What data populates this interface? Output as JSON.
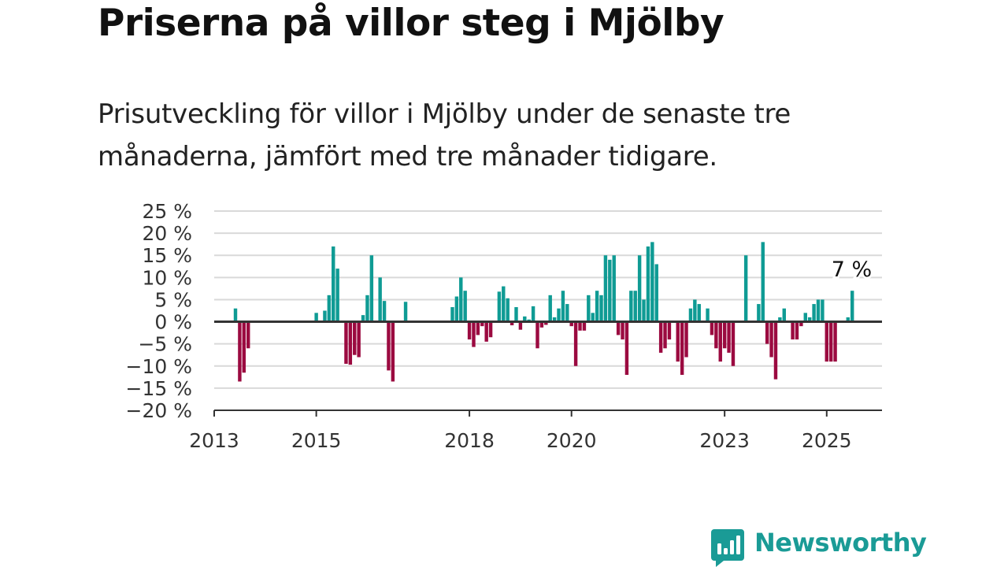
{
  "title": "Priserna på villor steg i Mjölby",
  "subtitle": "Prisutveckling för villor i Mjölby under de senaste tre månaderna, jämfört med tre månader tidigare.",
  "brand": {
    "name": "Newsworthy",
    "color": "#1a9b96",
    "icon": "newsworthy-bar-chart-icon"
  },
  "colors": {
    "positive": "#0f9b94",
    "negative": "#9b0a40",
    "grid": "#d9d9d9",
    "axis": "#333333"
  },
  "chart_data": {
    "type": "bar",
    "ylabel": "",
    "xlabel": "",
    "ylim": [
      -20,
      25
    ],
    "y_ticks": [
      {
        "value": 25,
        "label": "25 %"
      },
      {
        "value": 20,
        "label": "20 %"
      },
      {
        "value": 15,
        "label": "15 %"
      },
      {
        "value": 10,
        "label": "10 %"
      },
      {
        "value": 5,
        "label": "5 %"
      },
      {
        "value": 0,
        "label": "0 %"
      },
      {
        "value": -5,
        "label": "−5 %"
      },
      {
        "value": -10,
        "label": "−10 %"
      },
      {
        "value": -15,
        "label": "−15 %"
      },
      {
        "value": -20,
        "label": "−20 %"
      }
    ],
    "x_range": [
      "2013-01",
      "2026-02"
    ],
    "x_ticks": [
      {
        "date": "2013-01",
        "label": "2013"
      },
      {
        "date": "2015-01",
        "label": "2015"
      },
      {
        "date": "2018-01",
        "label": "2018"
      },
      {
        "date": "2020-01",
        "label": "2020"
      },
      {
        "date": "2023-01",
        "label": "2023"
      },
      {
        "date": "2025-01",
        "label": "2025"
      }
    ],
    "grid": true,
    "bars": [
      {
        "date": "2013-06",
        "value": 3
      },
      {
        "date": "2013-07",
        "value": -13.5
      },
      {
        "date": "2013-08",
        "value": -11.5
      },
      {
        "date": "2013-09",
        "value": -6
      },
      {
        "date": "2015-01",
        "value": 2
      },
      {
        "date": "2015-03",
        "value": 2.5
      },
      {
        "date": "2015-04",
        "value": 6
      },
      {
        "date": "2015-05",
        "value": 17
      },
      {
        "date": "2015-06",
        "value": 12
      },
      {
        "date": "2015-08",
        "value": -9.5
      },
      {
        "date": "2015-09",
        "value": -9.7
      },
      {
        "date": "2015-10",
        "value": -7.5
      },
      {
        "date": "2015-11",
        "value": -8
      },
      {
        "date": "2015-12",
        "value": 1.5
      },
      {
        "date": "2016-01",
        "value": 6
      },
      {
        "date": "2016-02",
        "value": 15
      },
      {
        "date": "2016-04",
        "value": 10
      },
      {
        "date": "2016-05",
        "value": 4.7
      },
      {
        "date": "2016-06",
        "value": -11
      },
      {
        "date": "2016-07",
        "value": -13.5
      },
      {
        "date": "2016-10",
        "value": 4.5
      },
      {
        "date": "2017-09",
        "value": 3.3
      },
      {
        "date": "2017-10",
        "value": 5.7
      },
      {
        "date": "2017-11",
        "value": 10
      },
      {
        "date": "2017-12",
        "value": 7
      },
      {
        "date": "2018-01",
        "value": -4
      },
      {
        "date": "2018-02",
        "value": -5.7
      },
      {
        "date": "2018-03",
        "value": -3
      },
      {
        "date": "2018-04",
        "value": -1
      },
      {
        "date": "2018-05",
        "value": -4.5
      },
      {
        "date": "2018-06",
        "value": -3.5
      },
      {
        "date": "2018-08",
        "value": 6.8
      },
      {
        "date": "2018-09",
        "value": 8
      },
      {
        "date": "2018-10",
        "value": 5.3
      },
      {
        "date": "2018-11",
        "value": -0.8
      },
      {
        "date": "2018-12",
        "value": 3.3
      },
      {
        "date": "2019-01",
        "value": -1.8
      },
      {
        "date": "2019-02",
        "value": 1.2
      },
      {
        "date": "2019-03",
        "value": 0.5
      },
      {
        "date": "2019-04",
        "value": 3.5
      },
      {
        "date": "2019-05",
        "value": -6
      },
      {
        "date": "2019-06",
        "value": -1.3
      },
      {
        "date": "2019-07",
        "value": -0.7
      },
      {
        "date": "2019-08",
        "value": 6
      },
      {
        "date": "2019-09",
        "value": 1
      },
      {
        "date": "2019-10",
        "value": 3
      },
      {
        "date": "2019-11",
        "value": 7
      },
      {
        "date": "2019-12",
        "value": 4
      },
      {
        "date": "2020-01",
        "value": -1
      },
      {
        "date": "2020-02",
        "value": -10
      },
      {
        "date": "2020-03",
        "value": -2
      },
      {
        "date": "2020-04",
        "value": -2
      },
      {
        "date": "2020-05",
        "value": 6
      },
      {
        "date": "2020-06",
        "value": 2
      },
      {
        "date": "2020-07",
        "value": 7
      },
      {
        "date": "2020-08",
        "value": 6
      },
      {
        "date": "2020-09",
        "value": 15
      },
      {
        "date": "2020-10",
        "value": 14
      },
      {
        "date": "2020-11",
        "value": 15
      },
      {
        "date": "2020-12",
        "value": -3
      },
      {
        "date": "2021-01",
        "value": -4
      },
      {
        "date": "2021-02",
        "value": -12
      },
      {
        "date": "2021-03",
        "value": 7
      },
      {
        "date": "2021-04",
        "value": 7
      },
      {
        "date": "2021-05",
        "value": 15
      },
      {
        "date": "2021-06",
        "value": 5
      },
      {
        "date": "2021-07",
        "value": 17
      },
      {
        "date": "2021-08",
        "value": 18
      },
      {
        "date": "2021-09",
        "value": 13
      },
      {
        "date": "2021-10",
        "value": -7
      },
      {
        "date": "2021-11",
        "value": -6
      },
      {
        "date": "2021-12",
        "value": -4
      },
      {
        "date": "2022-02",
        "value": -9
      },
      {
        "date": "2022-03",
        "value": -12
      },
      {
        "date": "2022-04",
        "value": -8
      },
      {
        "date": "2022-05",
        "value": 3
      },
      {
        "date": "2022-06",
        "value": 5
      },
      {
        "date": "2022-07",
        "value": 4
      },
      {
        "date": "2022-09",
        "value": 3
      },
      {
        "date": "2022-10",
        "value": -3
      },
      {
        "date": "2022-11",
        "value": -6
      },
      {
        "date": "2022-12",
        "value": -9
      },
      {
        "date": "2023-01",
        "value": -6
      },
      {
        "date": "2023-02",
        "value": -7
      },
      {
        "date": "2023-03",
        "value": -10
      },
      {
        "date": "2023-06",
        "value": 15
      },
      {
        "date": "2023-09",
        "value": 4
      },
      {
        "date": "2023-10",
        "value": 18
      },
      {
        "date": "2023-11",
        "value": -5
      },
      {
        "date": "2023-12",
        "value": -8
      },
      {
        "date": "2024-01",
        "value": -13
      },
      {
        "date": "2024-02",
        "value": 1
      },
      {
        "date": "2024-03",
        "value": 3
      },
      {
        "date": "2024-05",
        "value": -4
      },
      {
        "date": "2024-06",
        "value": -4
      },
      {
        "date": "2024-07",
        "value": -1
      },
      {
        "date": "2024-08",
        "value": 2
      },
      {
        "date": "2024-09",
        "value": 1
      },
      {
        "date": "2024-10",
        "value": 4
      },
      {
        "date": "2024-11",
        "value": 5
      },
      {
        "date": "2024-12",
        "value": 5
      },
      {
        "date": "2025-01",
        "value": -9
      },
      {
        "date": "2025-02",
        "value": -9
      },
      {
        "date": "2025-03",
        "value": -9
      },
      {
        "date": "2025-06",
        "value": 1
      },
      {
        "date": "2025-07",
        "value": 7
      }
    ],
    "annotation": {
      "text": "7 %",
      "date": "2025-07",
      "value": 7
    }
  }
}
